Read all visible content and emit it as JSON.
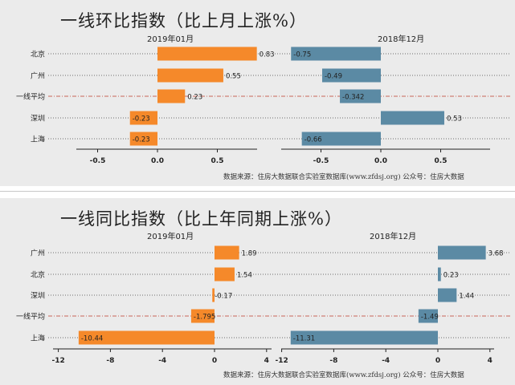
{
  "chart_data": [
    {
      "type": "bar",
      "orientation": "horizontal",
      "title": "一线环比指数（比上月上涨%）",
      "source_note": "数据来源：住房大数据联合实验室数据库(www.zfdsj.org) 公众号：住房大数据",
      "categories": [
        "北京",
        "广州",
        "一线平均",
        "深圳",
        "上海"
      ],
      "average_category": "一线平均",
      "series": [
        {
          "name": "2019年01月",
          "color": "#f5892a",
          "values": [
            0.83,
            0.55,
            0.23,
            -0.23,
            -0.23
          ],
          "labels": [
            "0.83",
            "0.55",
            "0.23",
            "-0.23",
            "-0.23"
          ]
        },
        {
          "name": "2018年12月",
          "color": "#5b8aa4",
          "values": [
            -0.75,
            -0.49,
            -0.342,
            0.53,
            -0.66
          ],
          "labels": [
            "-0.75",
            "-0.49",
            "-0.342",
            "0.53",
            "-0.66"
          ]
        }
      ],
      "xticks": [
        -0.5,
        0.0,
        0.5
      ],
      "xtick_labels": [
        "-0.5",
        "0.0",
        "0.5"
      ],
      "xlim": [
        -0.9,
        0.95
      ]
    },
    {
      "type": "bar",
      "orientation": "horizontal",
      "title": "一线同比指数（比上年同期上涨%）",
      "source_note": "数据来源：住房大数据联合实验室数据库(www.zfdsj.org) 公众号：住房大数据",
      "categories": [
        "广州",
        "北京",
        "深圳",
        "一线平均",
        "上海"
      ],
      "average_category": "一线平均",
      "series": [
        {
          "name": "2019年01月",
          "color": "#f5892a",
          "values": [
            1.89,
            1.54,
            -0.17,
            -1.795,
            -10.44
          ],
          "labels": [
            "1.89",
            "1.54",
            "-0.17",
            "-1.795",
            "-10.44"
          ]
        },
        {
          "name": "2018年12月",
          "color": "#5b8aa4",
          "values": [
            3.68,
            0.23,
            1.44,
            -1.49,
            -11.31
          ],
          "labels": [
            "3.68",
            "0.23",
            "1.44",
            "-1.49",
            "-11.31"
          ]
        }
      ],
      "xticks": [
        -12,
        -8,
        -4,
        0,
        4
      ],
      "xtick_labels": [
        "-12",
        "-8",
        "-4",
        "0",
        "4"
      ],
      "xlim": [
        -12.5,
        4.5
      ]
    }
  ]
}
